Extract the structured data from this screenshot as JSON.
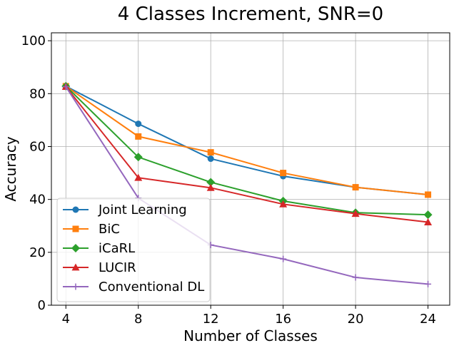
{
  "chart_data": {
    "type": "line",
    "title": "4 Classes Increment, SNR=0",
    "xlabel": "Number of Classes",
    "ylabel": "Accuracy",
    "x": [
      4,
      8,
      12,
      16,
      20,
      24
    ],
    "xticks": [
      "4",
      "8",
      "12",
      "16",
      "20",
      "24"
    ],
    "yticks": [
      "0",
      "20",
      "40",
      "60",
      "80",
      "100"
    ],
    "xlim": [
      3.2,
      25.2
    ],
    "ylim": [
      0,
      103
    ],
    "grid": true,
    "legend_position": "lower-left",
    "series": [
      {
        "name": "Joint Learning",
        "color": "#1f77b4",
        "marker": "circle",
        "values": [
          82.8,
          68.6,
          55.4,
          48.8,
          44.6,
          41.8
        ]
      },
      {
        "name": "BiC",
        "color": "#ff7f0e",
        "marker": "square",
        "values": [
          82.8,
          63.8,
          57.8,
          50.0,
          44.6,
          41.8
        ]
      },
      {
        "name": "iCaRL",
        "color": "#2ca02c",
        "marker": "diamond",
        "values": [
          82.8,
          56.0,
          46.5,
          39.4,
          35.0,
          34.2
        ]
      },
      {
        "name": "LUCIR",
        "color": "#d62728",
        "marker": "triangle",
        "values": [
          82.6,
          48.2,
          44.4,
          38.2,
          34.6,
          31.4
        ]
      },
      {
        "name": "Conventional DL",
        "color": "#9467bd",
        "marker": "plus",
        "values": [
          82.6,
          40.5,
          22.8,
          17.5,
          10.5,
          8.0
        ]
      }
    ]
  }
}
